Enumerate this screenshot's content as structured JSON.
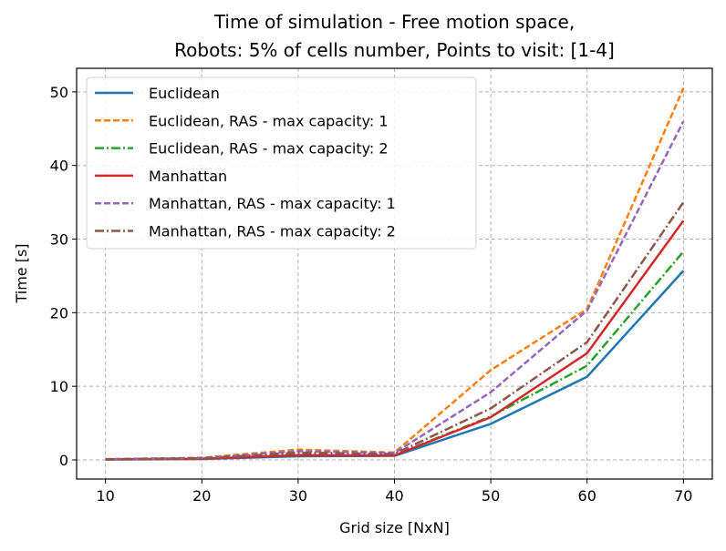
{
  "chart_data": {
    "type": "line",
    "title_lines": [
      "Time of simulation - Free motion space,",
      "Robots: 5% of cells number, Points to visit: [1-4]"
    ],
    "xlabel": "Grid size [NxN]",
    "ylabel": "Time [s]",
    "x": [
      10,
      20,
      30,
      40,
      50,
      60,
      70
    ],
    "xlim": [
      7,
      73
    ],
    "ylim": [
      -2.6,
      53.2
    ],
    "xticks": [
      10,
      20,
      30,
      40,
      50,
      60,
      70
    ],
    "yticks": [
      0,
      10,
      20,
      30,
      40,
      50
    ],
    "grid": true,
    "legend_position": "upper-left",
    "series": [
      {
        "name": "Euclidean",
        "color": "#1f77b4",
        "dash": "solid",
        "values": [
          0.05,
          0.12,
          0.5,
          0.55,
          4.9,
          11.3,
          25.7
        ]
      },
      {
        "name": "Euclidean, RAS - max capacity: 1",
        "color": "#ff7f0e",
        "dash": "dashed",
        "values": [
          0.1,
          0.3,
          1.4,
          1.0,
          12.2,
          20.5,
          50.5
        ]
      },
      {
        "name": "Euclidean, RAS - max capacity: 2",
        "color": "#2ca02c",
        "dash": "dashdot",
        "values": [
          0.07,
          0.2,
          0.8,
          0.65,
          5.9,
          12.8,
          28.3
        ]
      },
      {
        "name": "Manhattan",
        "color": "#d62728",
        "dash": "solid",
        "values": [
          0.06,
          0.15,
          0.65,
          0.6,
          5.8,
          14.5,
          32.5
        ]
      },
      {
        "name": "Manhattan, RAS - max capacity: 1",
        "color": "#9467bd",
        "dash": "dashed",
        "values": [
          0.09,
          0.25,
          1.2,
          0.95,
          9.2,
          20.3,
          46.0
        ]
      },
      {
        "name": "Manhattan, RAS - max capacity: 2",
        "color": "#8c564b",
        "dash": "dashdot",
        "values": [
          0.08,
          0.22,
          1.0,
          0.8,
          7.0,
          16.0,
          35.0
        ]
      }
    ]
  }
}
